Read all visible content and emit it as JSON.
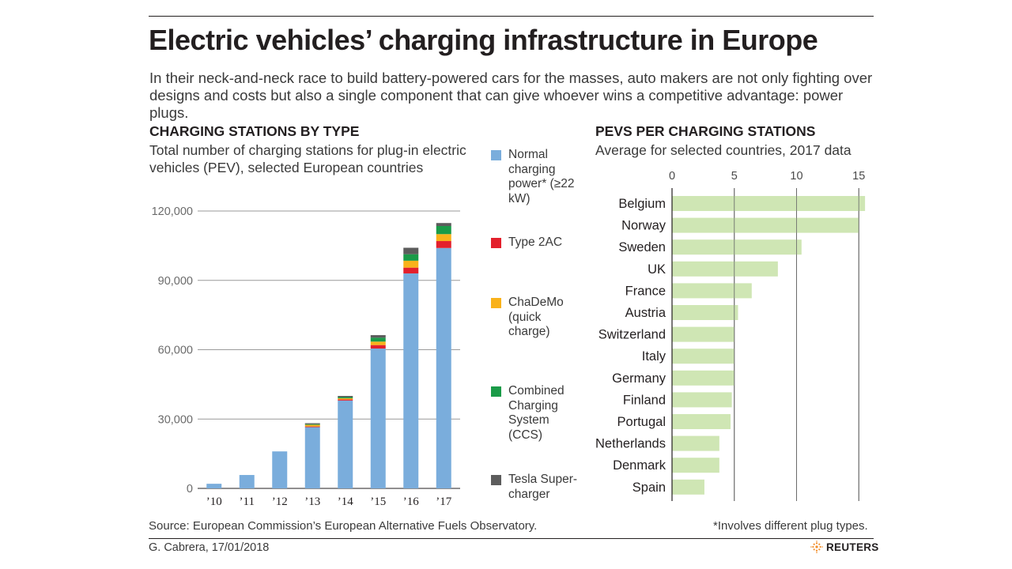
{
  "header": {
    "title": "Electric vehicles’ charging infrastructure in Europe",
    "intro": "In their neck-and-neck race to build battery-powered cars for the masses, auto makers are not only fighting over designs and costs but also a single component that can give whoever wins a competitive advantage: power plugs."
  },
  "left_chart": {
    "heading": "CHARGING STATIONS BY TYPE",
    "subtitle": "Total number of charging stations for plug-in electric vehicles (PEV), selected European countries",
    "legend": [
      {
        "label": "Normal charging power* (≥22 kW)",
        "color": "#7aaddc"
      },
      {
        "label": "Type 2AC",
        "color": "#e3202c"
      },
      {
        "label": "ChaDeMo (quick charge)",
        "color": "#f9b21b"
      },
      {
        "label": "Combined Charging System (CCS)",
        "color": "#1a9b48"
      },
      {
        "label": "Tesla Super-charger",
        "color": "#5c5c5c"
      }
    ]
  },
  "right_chart": {
    "heading": "PEVS PER CHARGING STATIONS",
    "subtitle": "Average for selected countries, 2017 data"
  },
  "chart_data": [
    {
      "type": "bar",
      "stacked": true,
      "title": "CHARGING STATIONS BY TYPE",
      "categories": [
        "’10",
        "’11",
        "’12",
        "’13",
        "’14",
        "’15",
        "’16",
        "’17"
      ],
      "series": [
        {
          "name": "Normal charging power* (≥22 kW)",
          "color": "#7aaddc",
          "values": [
            2000,
            5800,
            16000,
            26500,
            38000,
            60500,
            93000,
            104000
          ]
        },
        {
          "name": "Type 2AC",
          "color": "#e3202c",
          "values": [
            0,
            0,
            0,
            300,
            500,
            1500,
            2500,
            3000
          ]
        },
        {
          "name": "ChaDeMo (quick charge)",
          "color": "#f9b21b",
          "values": [
            0,
            0,
            0,
            700,
            500,
            1500,
            3000,
            3000
          ]
        },
        {
          "name": "Combined Charging System (CCS)",
          "color": "#1a9b48",
          "values": [
            0,
            0,
            0,
            300,
            500,
            1700,
            2800,
            3500
          ]
        },
        {
          "name": "Tesla Super-charger",
          "color": "#5c5c5c",
          "values": [
            0,
            0,
            0,
            400,
            500,
            1100,
            2800,
            1300
          ]
        }
      ],
      "yticks": [
        0,
        30000,
        60000,
        90000,
        120000
      ],
      "ytick_labels": [
        "0",
        "30,000",
        "60,000",
        "90,000",
        "120,000"
      ],
      "ylim": [
        0,
        120000
      ],
      "grid": true,
      "legend": "right"
    },
    {
      "type": "bar",
      "orientation": "horizontal",
      "title": "PEVS PER CHARGING STATIONS",
      "categories": [
        "Belgium",
        "Norway",
        "Sweden",
        "UK",
        "France",
        "Austria",
        "Switzerland",
        "Italy",
        "Germany",
        "Finland",
        "Portugal",
        "Netherlands",
        "Denmark",
        "Spain"
      ],
      "values": [
        15.5,
        15,
        10.4,
        8.5,
        6.4,
        5.3,
        5,
        5,
        5,
        4.8,
        4.7,
        3.8,
        3.8,
        2.6
      ],
      "color": "#cfe6b4",
      "xticks": [
        0,
        5,
        10,
        15
      ],
      "xlim": [
        0,
        15.5
      ],
      "grid": true
    }
  ],
  "footer": {
    "source": "Source: European Commission’s European Alternative Fuels Observatory.",
    "footnote": "*Involves different plug types.",
    "byline": "G. Cabrera, 17/01/2018",
    "brand": "REUTERS"
  }
}
